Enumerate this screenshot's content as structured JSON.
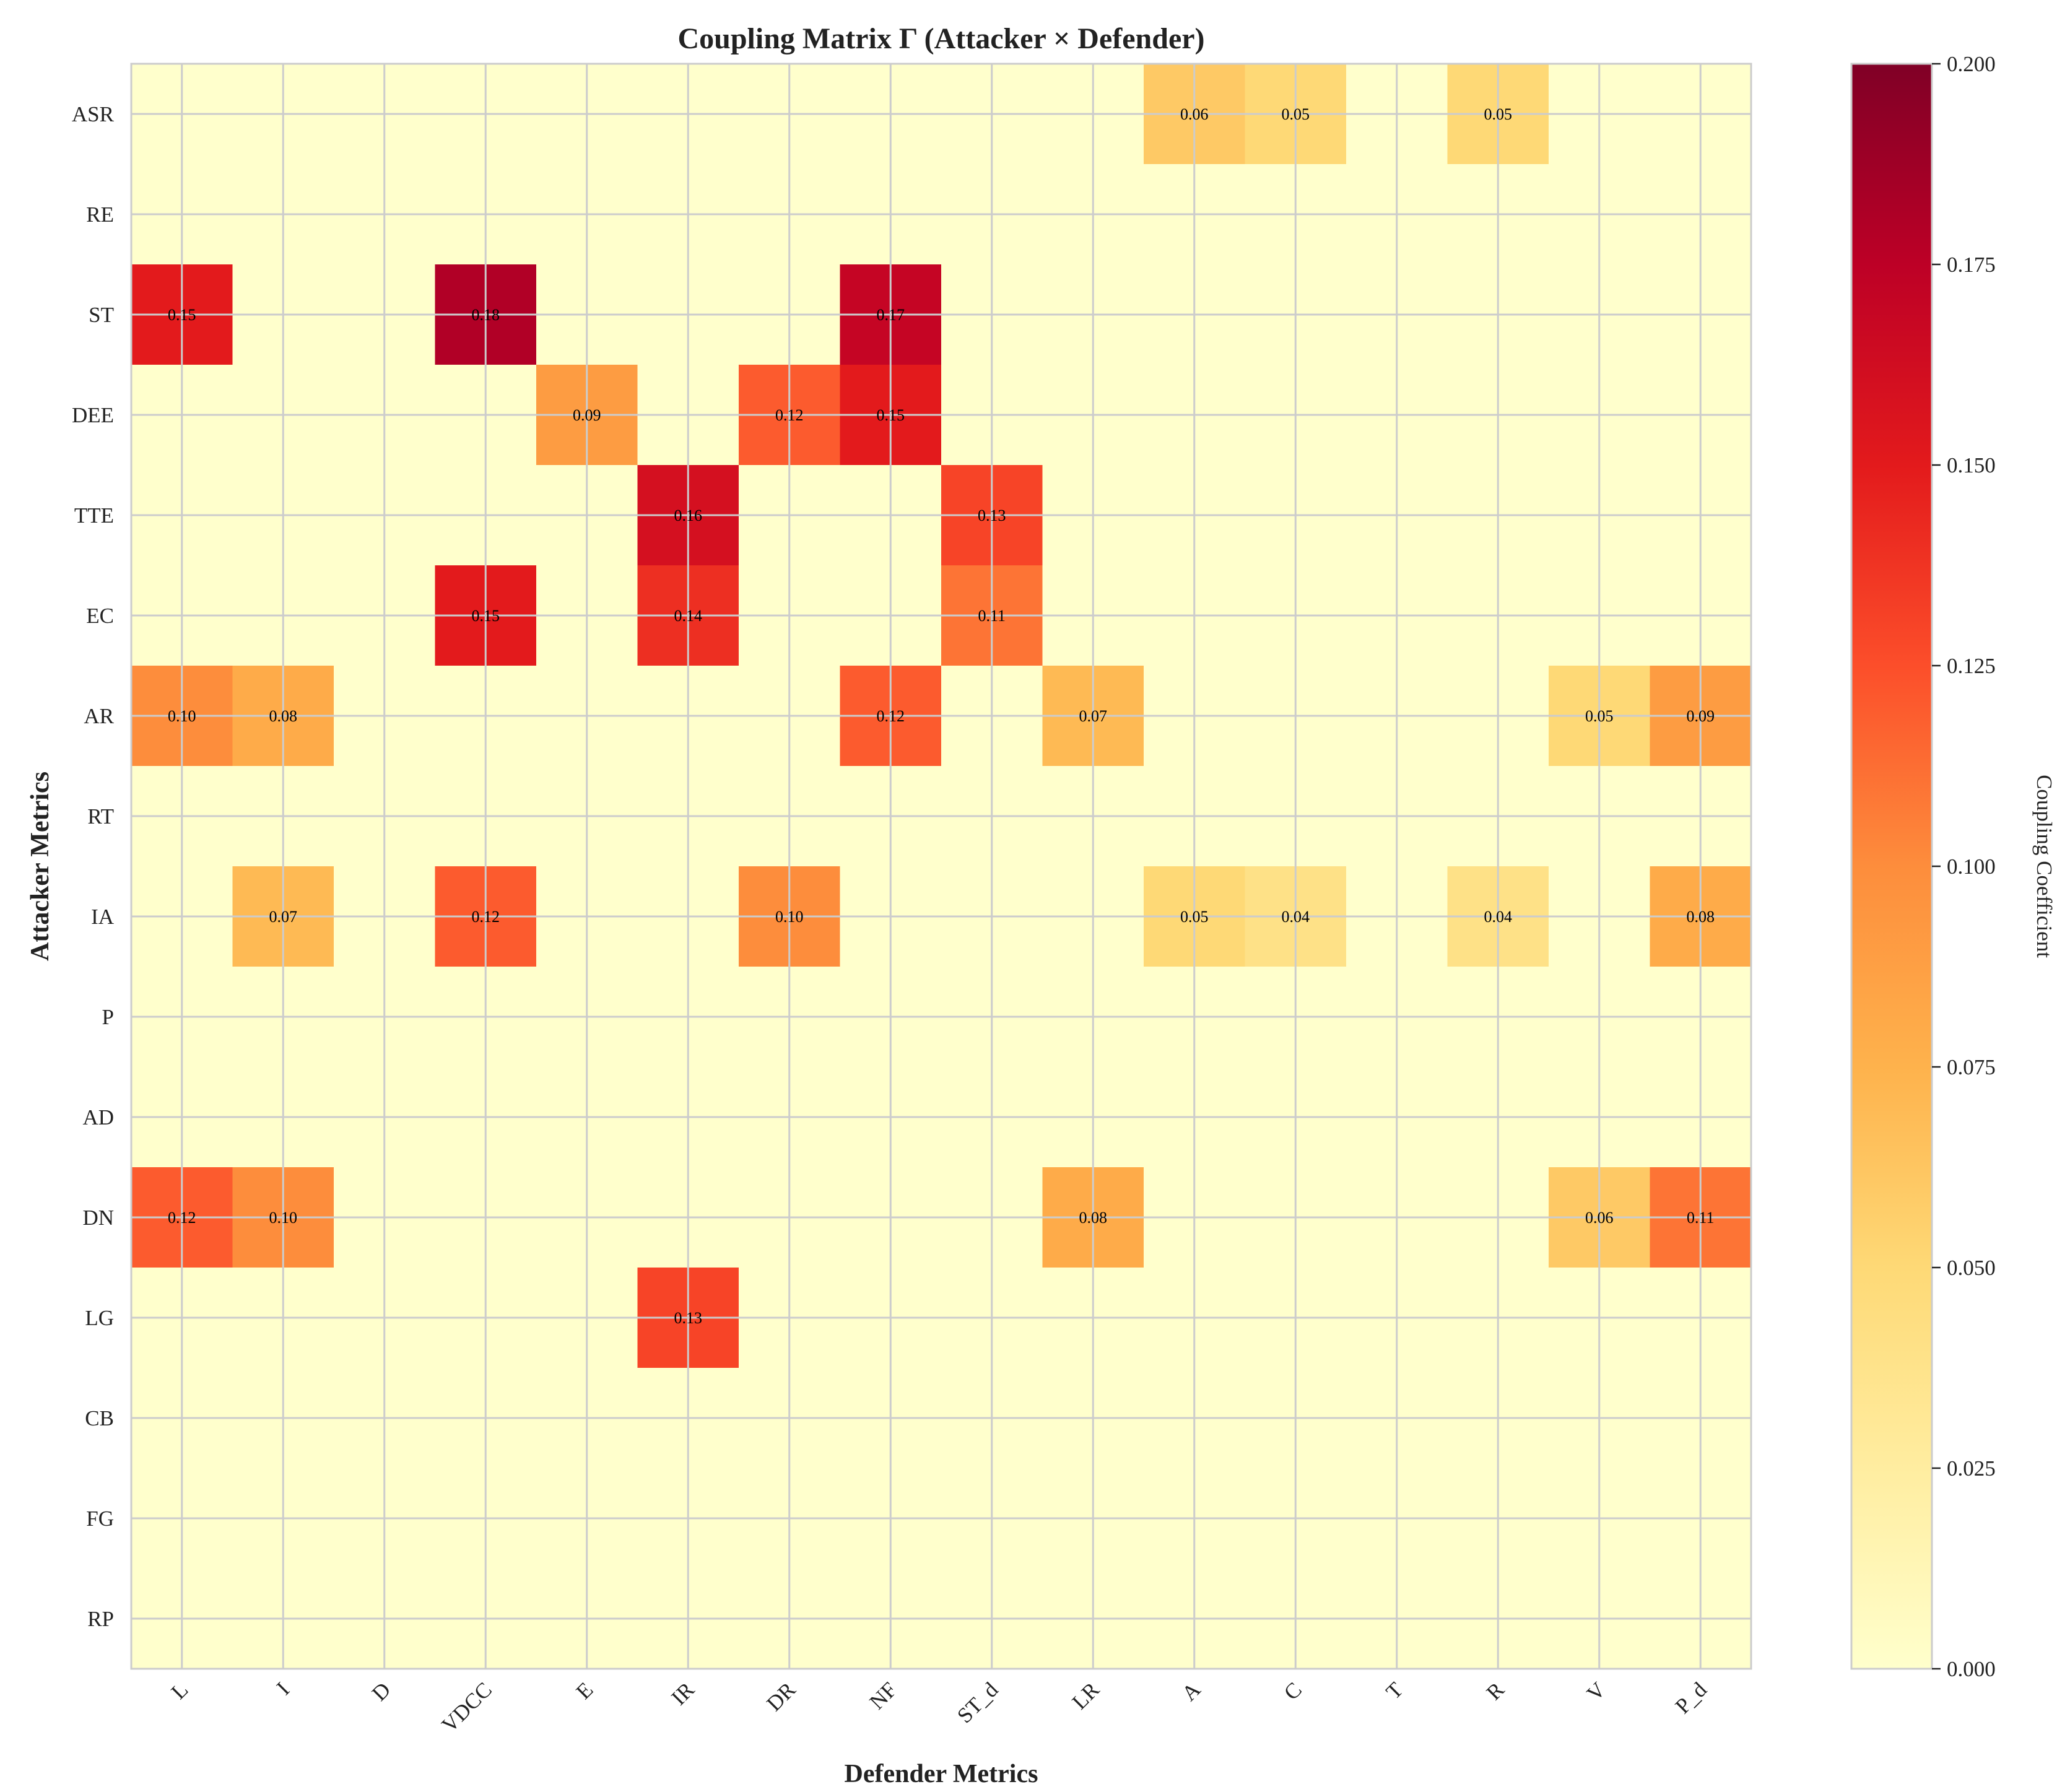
{
  "chart_data": {
    "type": "heatmap",
    "title": "Coupling Matrix Γ (Attacker × Defender)",
    "xlabel": "Defender Metrics",
    "ylabel": "Attacker Metrics",
    "x": [
      "L",
      "I",
      "D",
      "VDCC",
      "E",
      "IR",
      "DR",
      "NF",
      "ST_d",
      "LR",
      "A",
      "C",
      "T",
      "R",
      "V",
      "P_d"
    ],
    "y": [
      "ASR",
      "RE",
      "ST",
      "DEE",
      "TTE",
      "EC",
      "AR",
      "RT",
      "IA",
      "P",
      "AD",
      "DN",
      "LG",
      "CB",
      "FG",
      "RP"
    ],
    "values": [
      [
        0,
        0,
        0,
        0,
        0,
        0,
        0,
        0,
        0,
        0,
        0.06,
        0.05,
        0,
        0.05,
        0,
        0
      ],
      [
        0,
        0,
        0,
        0,
        0,
        0,
        0,
        0,
        0,
        0,
        0,
        0,
        0,
        0,
        0,
        0
      ],
      [
        0.15,
        0,
        0,
        0.18,
        0,
        0,
        0,
        0.17,
        0,
        0,
        0,
        0,
        0,
        0,
        0,
        0
      ],
      [
        0,
        0,
        0,
        0,
        0.09,
        0,
        0.12,
        0.15,
        0,
        0,
        0,
        0,
        0,
        0,
        0,
        0
      ],
      [
        0,
        0,
        0,
        0,
        0,
        0.16,
        0,
        0,
        0.13,
        0,
        0,
        0,
        0,
        0,
        0,
        0
      ],
      [
        0,
        0,
        0,
        0.15,
        0,
        0.14,
        0,
        0,
        0.11,
        0,
        0,
        0,
        0,
        0,
        0,
        0
      ],
      [
        0.1,
        0.08,
        0,
        0,
        0,
        0,
        0,
        0.12,
        0,
        0.07,
        0,
        0,
        0,
        0,
        0.05,
        0.09
      ],
      [
        0,
        0,
        0,
        0,
        0,
        0,
        0,
        0,
        0,
        0,
        0,
        0,
        0,
        0,
        0,
        0
      ],
      [
        0,
        0.07,
        0,
        0.12,
        0,
        0,
        0.1,
        0,
        0,
        0,
        0.05,
        0.04,
        0,
        0.04,
        0,
        0.08
      ],
      [
        0,
        0,
        0,
        0,
        0,
        0,
        0,
        0,
        0,
        0,
        0,
        0,
        0,
        0,
        0,
        0
      ],
      [
        0,
        0,
        0,
        0,
        0,
        0,
        0,
        0,
        0,
        0,
        0,
        0,
        0,
        0,
        0,
        0
      ],
      [
        0.12,
        0.1,
        0,
        0,
        0,
        0,
        0,
        0,
        0,
        0.08,
        0,
        0,
        0,
        0,
        0.06,
        0.11
      ],
      [
        0,
        0,
        0,
        0,
        0,
        0.13,
        0,
        0,
        0,
        0,
        0,
        0,
        0,
        0,
        0,
        0
      ],
      [
        0,
        0,
        0,
        0,
        0,
        0,
        0,
        0,
        0,
        0,
        0,
        0,
        0,
        0,
        0,
        0
      ],
      [
        0,
        0,
        0,
        0,
        0,
        0,
        0,
        0,
        0,
        0,
        0,
        0,
        0,
        0,
        0,
        0
      ],
      [
        0,
        0,
        0,
        0,
        0,
        0,
        0,
        0,
        0,
        0,
        0,
        0,
        0,
        0,
        0,
        0
      ]
    ],
    "value_format_decimals": 2,
    "colorbar": {
      "label": "Coupling Coefficient",
      "range": [
        0,
        0.2
      ],
      "ticks": [
        "0.000",
        "0.025",
        "0.050",
        "0.075",
        "0.100",
        "0.125",
        "0.150",
        "0.175",
        "0.200"
      ],
      "colormap": "YlOrRd",
      "colormap_stops": [
        "#ffffcc",
        "#ffeda0",
        "#fed976",
        "#feb24c",
        "#fd8d3c",
        "#fc4e2a",
        "#e31a1c",
        "#bd0026",
        "#800026"
      ]
    },
    "grid": true,
    "grid_color": "#cccccc"
  }
}
